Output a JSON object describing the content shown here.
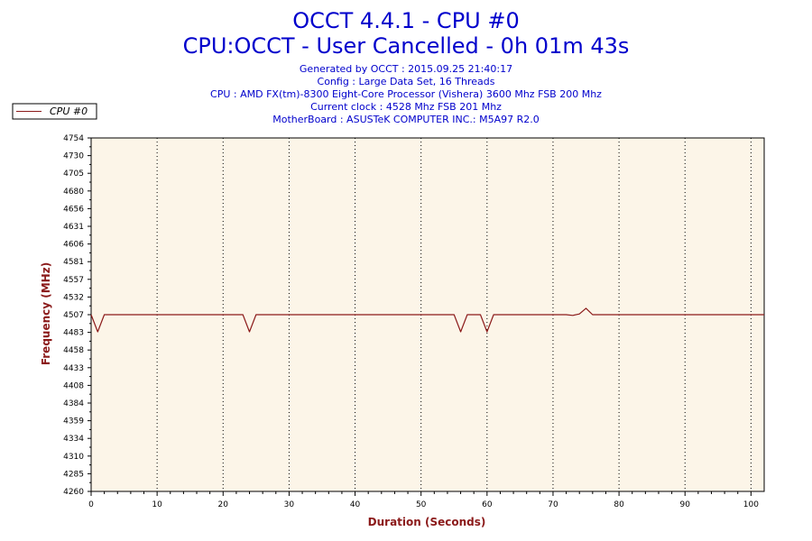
{
  "header": {
    "title": "OCCT 4.4.1 - CPU #0",
    "subtitle": "CPU:OCCT - User Cancelled - 0h 01m 43s",
    "info_lines": [
      "Generated by OCCT : 2015.09.25 21:40:17",
      "Config : Large Data Set, 16 Threads",
      "CPU : AMD FX(tm)-8300 Eight-Core Processor (Vishera) 3600 Mhz FSB 200 Mhz",
      "Current clock : 4528 Mhz FSB 201 Mhz",
      "MotherBoard : ASUSTeK COMPUTER INC.: M5A97 R2.0"
    ]
  },
  "colors": {
    "text": "#0000cc",
    "plot_background": "#fcf5e8",
    "series": "#8b1a1a",
    "axis_label": "#8b1a1a"
  },
  "chart_data": {
    "type": "line",
    "xlabel": "Duration (Seconds)",
    "ylabel": "Frequency (MHz)",
    "xlim": [
      0,
      102
    ],
    "ylim": [
      4260,
      4754
    ],
    "x_ticks": [
      "0",
      "10",
      "20",
      "30",
      "40",
      "50",
      "60",
      "70",
      "80",
      "90",
      "100"
    ],
    "y_ticks": [
      "4754",
      "4730",
      "4705",
      "4680",
      "4656",
      "4631",
      "4606",
      "4581",
      "4557",
      "4532",
      "4507",
      "4483",
      "4458",
      "4433",
      "4408",
      "4384",
      "4359",
      "4334",
      "4310",
      "4285",
      "4260"
    ],
    "grid": "vertical dotted",
    "legend_position": "top-left",
    "series": [
      {
        "name": "CPU #0",
        "x": [
          0,
          1,
          2,
          3,
          23,
          24,
          25,
          26,
          27,
          55,
          56,
          57,
          58,
          59,
          60,
          61,
          62,
          72,
          73,
          74,
          75,
          76,
          77,
          102
        ],
        "y": [
          4507,
          4483,
          4507,
          4507,
          4507,
          4483,
          4507,
          4507,
          4507,
          4507,
          4483,
          4507,
          4507,
          4507,
          4483,
          4507,
          4507,
          4507,
          4506,
          4508,
          4516,
          4507,
          4507,
          4507
        ]
      }
    ]
  }
}
